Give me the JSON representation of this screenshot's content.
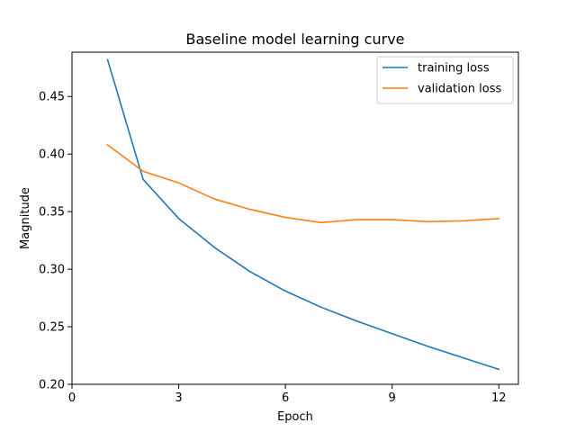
{
  "chart_data": {
    "type": "line",
    "title": "Baseline model learning curve",
    "xlabel": "Epoch",
    "ylabel": "Magnitude",
    "xlim": [
      0,
      12.55
    ],
    "ylim": [
      0.2,
      0.4885
    ],
    "xticks": [
      0,
      3,
      6,
      9,
      12
    ],
    "yticks": [
      0.2,
      0.25,
      0.3,
      0.35,
      0.4,
      0.45
    ],
    "xtick_labels": [
      "0",
      "3",
      "6",
      "9",
      "12"
    ],
    "ytick_labels": [
      "0.20",
      "0.25",
      "0.30",
      "0.35",
      "0.40",
      "0.45"
    ],
    "grid": false,
    "legend_position": "top-right",
    "x": [
      1,
      2,
      3,
      4,
      5,
      6,
      7,
      8,
      9,
      10,
      11,
      12
    ],
    "series": [
      {
        "name": "training loss",
        "color": "#1f77b4",
        "values": [
          0.482,
          0.378,
          0.344,
          0.319,
          0.298,
          0.281,
          0.267,
          0.255,
          0.244,
          0.233,
          0.223,
          0.213
        ]
      },
      {
        "name": "validation loss",
        "color": "#ff7f0e",
        "values": [
          0.408,
          0.385,
          0.375,
          0.361,
          0.352,
          0.345,
          0.3405,
          0.343,
          0.343,
          0.3413,
          0.342,
          0.344
        ]
      }
    ]
  }
}
